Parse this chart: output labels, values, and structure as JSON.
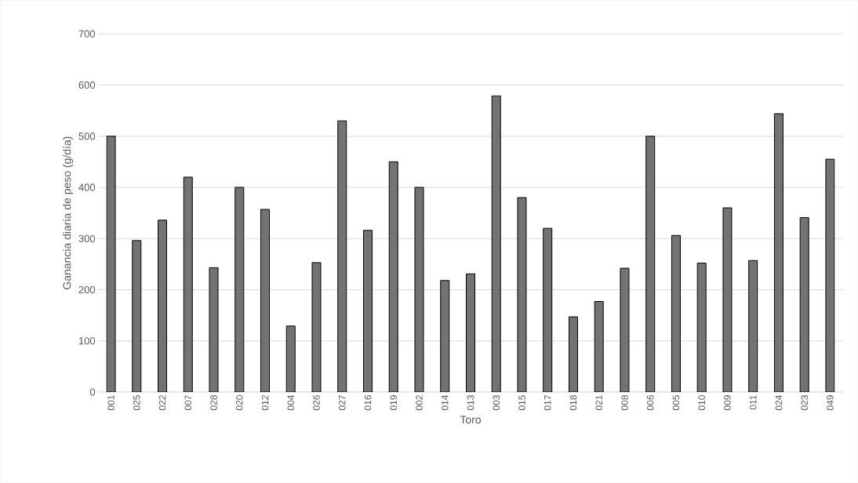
{
  "chart_data": {
    "type": "bar",
    "xlabel": "Toro",
    "ylabel": "Ganancia diaria de peso (g/día)",
    "categories": [
      "001",
      "025",
      "022",
      "007",
      "028",
      "020",
      "012",
      "004",
      "026",
      "027",
      "016",
      "019",
      "002",
      "014",
      "013",
      "003",
      "015",
      "017",
      "018",
      "021",
      "008",
      "006",
      "005",
      "010",
      "009",
      "011",
      "024",
      "023",
      "049"
    ],
    "values": [
      500,
      296,
      336,
      420,
      243,
      400,
      357,
      129,
      253,
      530,
      316,
      450,
      400,
      218,
      231,
      579,
      380,
      320,
      147,
      177,
      242,
      500,
      306,
      252,
      360,
      257,
      544,
      341,
      455
    ],
    "color": "#000000",
    "ylim": [
      0,
      700
    ],
    "yticks": [
      0,
      100,
      200,
      300,
      400,
      500,
      600,
      700
    ],
    "grid": "y"
  }
}
